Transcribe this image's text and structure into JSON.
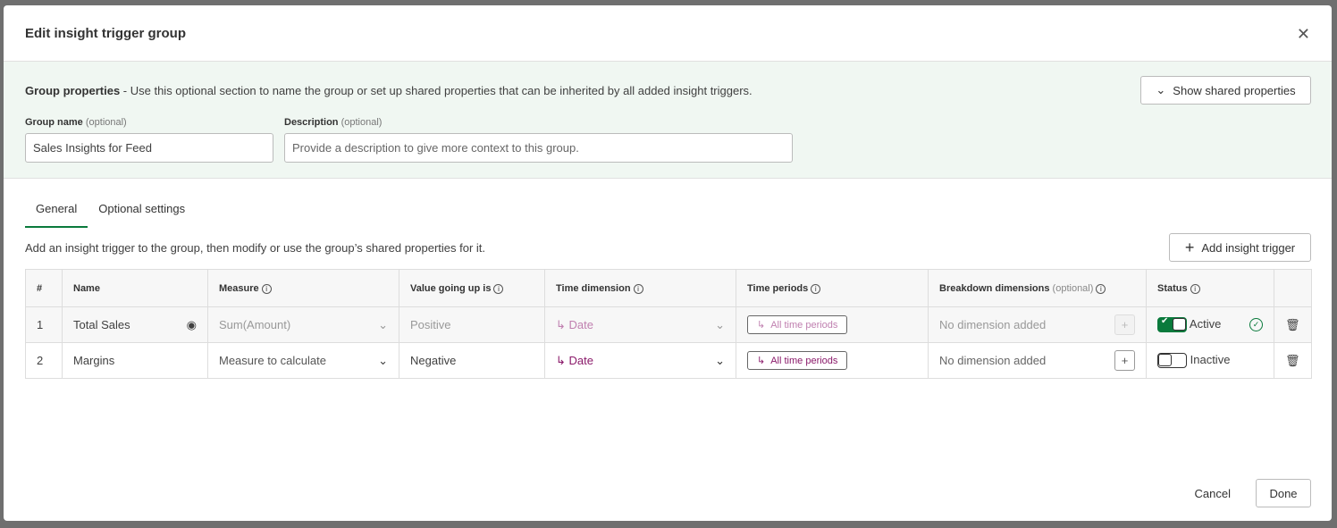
{
  "dialog": {
    "title": "Edit insight trigger group"
  },
  "group": {
    "heading": "Group properties",
    "intro": " - Use this optional section to name the group or set up shared properties that can be inherited by all added insight triggers.",
    "show_shared": "Show shared properties",
    "name_label": "Group name",
    "name_optional": "(optional)",
    "name_value": "Sales Insights for Feed",
    "desc_label": "Description",
    "desc_optional": "(optional)",
    "desc_placeholder": "Provide a description to give more context to this group."
  },
  "tabs": [
    "General",
    "Optional settings"
  ],
  "description": "Add an insight trigger to the group, then modify or use the group’s shared properties for it.",
  "add_trigger": "Add insight trigger",
  "columns": {
    "num": "#",
    "name": "Name",
    "measure": "Measure",
    "value": "Value going up is",
    "time_dim": "Time dimension",
    "time_periods": "Time periods",
    "breakdown": "Breakdown dimensions",
    "breakdown_opt": "(optional)",
    "status": "Status"
  },
  "rows": [
    {
      "num": "1",
      "name": "Total Sales",
      "measure": "Sum(Amount)",
      "value": "Positive",
      "time_dim": "Date",
      "time_periods": "All time periods",
      "breakdown": "No dimension added",
      "status": "Active",
      "active": true
    },
    {
      "num": "2",
      "name": "Margins",
      "measure": "Measure to calculate",
      "value": "Negative",
      "time_dim": "Date",
      "time_periods": "All time periods",
      "breakdown": "No dimension added",
      "status": "Inactive",
      "active": false
    }
  ],
  "footer": {
    "cancel": "Cancel",
    "done": "Done"
  },
  "colors": {
    "accent": "#0a7a3c",
    "dimension": "#8a1a6a",
    "group_bg": "#f0f7f2"
  }
}
